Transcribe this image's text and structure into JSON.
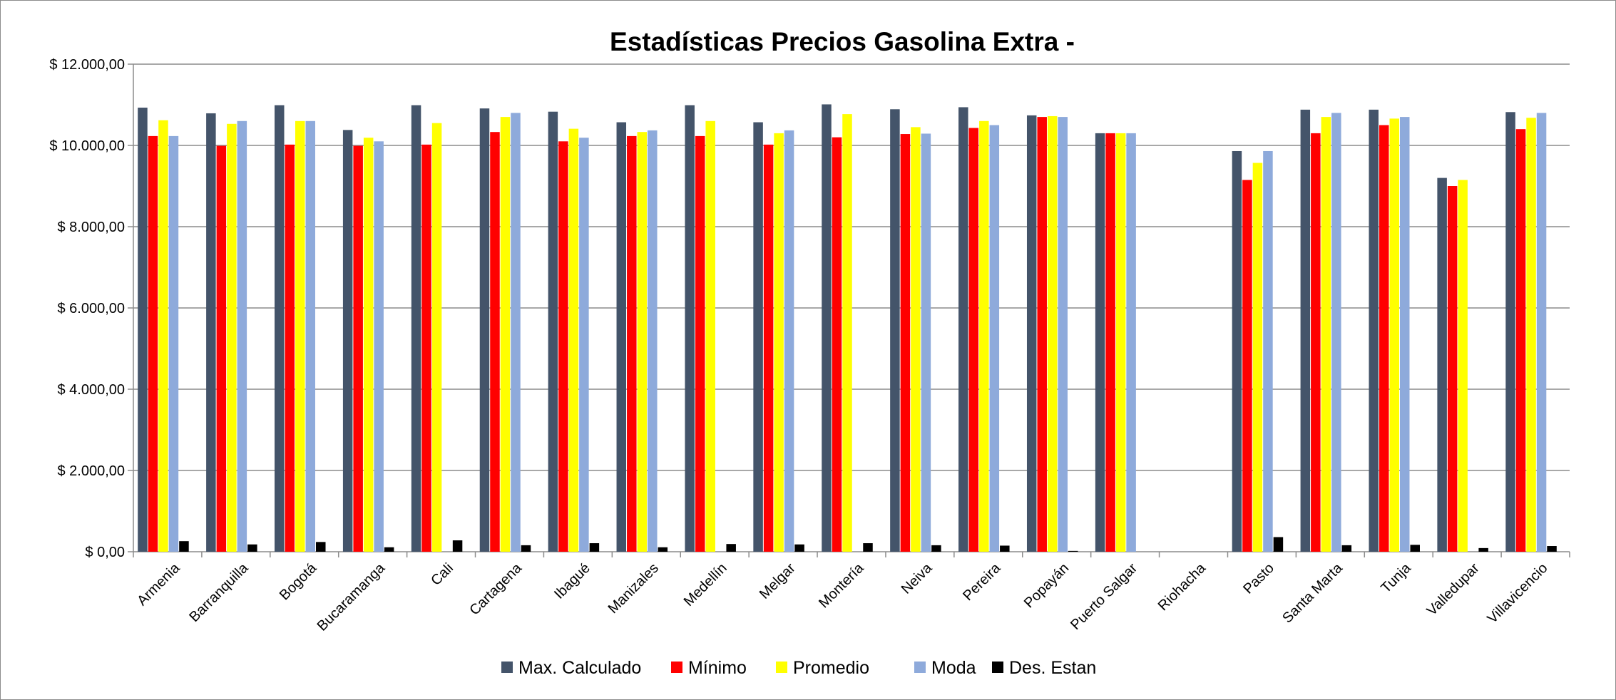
{
  "chart_data": {
    "type": "bar",
    "title": "Estadísticas Precios Gasolina Extra -",
    "xlabel": "",
    "ylabel": "",
    "ylim": [
      0,
      12000
    ],
    "yticks": [
      0,
      2000,
      4000,
      6000,
      8000,
      10000,
      12000
    ],
    "ytick_labels": [
      "$ 0,00",
      "$ 2.000,00",
      "$ 4.000,00",
      "$ 6.000,00",
      "$ 8.000,00",
      "$ 10.000,00",
      "$ 12.000,00"
    ],
    "grid": "horizontal",
    "legend_position": "bottom",
    "categories": [
      "Armenia",
      "Barranquilla",
      "Bogotá",
      "Bucaramanga",
      "Cali",
      "Cartagena",
      "Ibagué",
      "Manizales",
      "Medellín",
      "Melgar",
      "Montería",
      "Neiva",
      "Pereira",
      "Popayán",
      "Puerto Salgar",
      "Riohacha",
      "Pasto",
      "Santa Marta",
      "Tunja",
      "Valledupar",
      "Villavicencio"
    ],
    "series": [
      {
        "name": "Max. Calculado",
        "color": "#44546a",
        "values": [
          10930,
          10790,
          10990,
          10380,
          10990,
          10910,
          10830,
          10570,
          10990,
          10570,
          11010,
          10890,
          10940,
          10740,
          10300,
          null,
          9860,
          10880,
          10880,
          9200,
          10820
        ]
      },
      {
        "name": "Mínimo",
        "color": "#ff0000",
        "values": [
          10230,
          9990,
          10020,
          9990,
          10020,
          10330,
          10100,
          10230,
          10230,
          10020,
          10200,
          10280,
          10430,
          10700,
          10300,
          null,
          9150,
          10300,
          10500,
          9000,
          10400
        ]
      },
      {
        "name": "Promedio",
        "color": "#ffff00",
        "values": [
          10620,
          10530,
          10600,
          10190,
          10550,
          10700,
          10410,
          10330,
          10600,
          10300,
          10770,
          10450,
          10600,
          10720,
          10300,
          null,
          9570,
          10700,
          10660,
          9150,
          10680
        ]
      },
      {
        "name": "Moda",
        "color": "#8eaadb",
        "values": [
          10230,
          10600,
          10600,
          10100,
          null,
          10800,
          10190,
          10370,
          null,
          10370,
          null,
          10290,
          10500,
          10700,
          10300,
          null,
          9860,
          10800,
          10700,
          null,
          10800
        ]
      },
      {
        "name": "Des. Estan",
        "color": "#000000",
        "values": [
          260,
          180,
          240,
          110,
          280,
          160,
          210,
          110,
          190,
          180,
          210,
          160,
          150,
          20,
          null,
          null,
          360,
          160,
          170,
          90,
          140
        ]
      }
    ]
  }
}
